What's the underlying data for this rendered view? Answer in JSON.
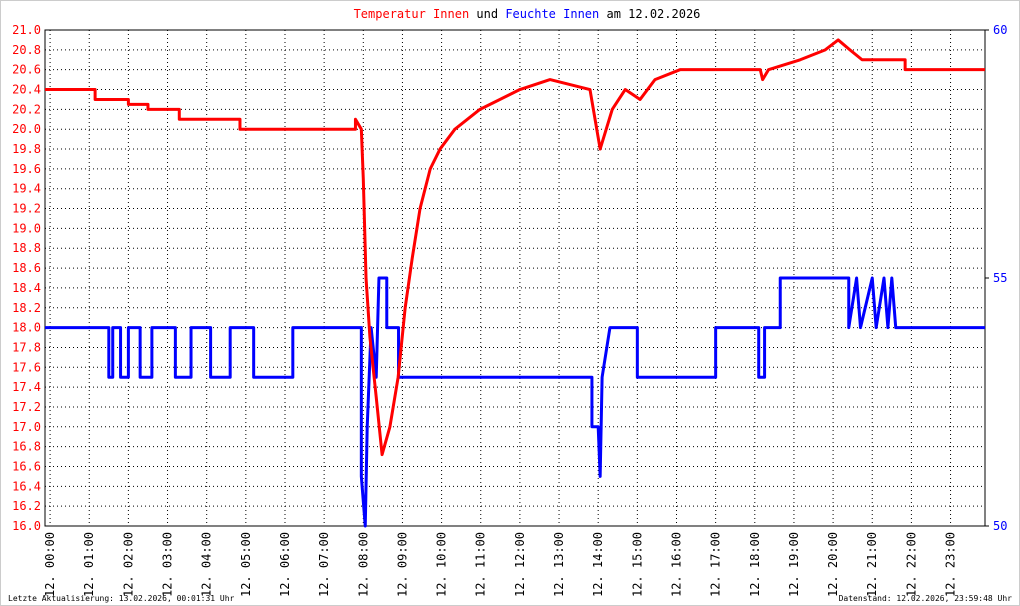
{
  "chart_data": {
    "type": "line",
    "title_words": [
      "und",
      "am 12.02.2026"
    ],
    "footer_left": "Letzte Aktualisierung: 13.02.2026, 00:01:31 Uhr",
    "footer_right": "Datenstand: 12.02.2026, 23:59:48 Uhr",
    "grid": true,
    "xlim": [
      -0.13,
      23.88
    ],
    "xticks": [
      {
        "value": 0,
        "label": "12. 00:00"
      },
      {
        "value": 1,
        "label": "12. 01:00"
      },
      {
        "value": 2,
        "label": "12. 02:00"
      },
      {
        "value": 3,
        "label": "12. 03:00"
      },
      {
        "value": 4,
        "label": "12. 04:00"
      },
      {
        "value": 5,
        "label": "12. 05:00"
      },
      {
        "value": 6,
        "label": "12. 06:00"
      },
      {
        "value": 7,
        "label": "12. 07:00"
      },
      {
        "value": 8,
        "label": "12. 08:00"
      },
      {
        "value": 9,
        "label": "12. 09:00"
      },
      {
        "value": 10,
        "label": "12. 10:00"
      },
      {
        "value": 11,
        "label": "12. 11:00"
      },
      {
        "value": 12,
        "label": "12. 12:00"
      },
      {
        "value": 13,
        "label": "12. 13:00"
      },
      {
        "value": 14,
        "label": "12. 14:00"
      },
      {
        "value": 15,
        "label": "12. 15:00"
      },
      {
        "value": 16,
        "label": "12. 16:00"
      },
      {
        "value": 17,
        "label": "12. 17:00"
      },
      {
        "value": 18,
        "label": "12. 18:00"
      },
      {
        "value": 19,
        "label": "12. 19:00"
      },
      {
        "value": 20,
        "label": "12. 20:00"
      },
      {
        "value": 21,
        "label": "12. 21:00"
      },
      {
        "value": 22,
        "label": "12. 22:00"
      },
      {
        "value": 23,
        "label": "12. 23:00"
      }
    ],
    "ylim": [
      16,
      21
    ],
    "yticks": [
      {
        "value": 16,
        "label": "16.0"
      },
      16.2,
      16.4,
      16.6,
      16.8,
      {
        "value": 17,
        "label": "17.0"
      },
      17.2,
      17.4,
      17.6,
      17.8,
      {
        "value": 18,
        "label": "18.0"
      },
      18.2,
      18.4,
      18.6,
      18.8,
      {
        "value": 19,
        "label": "19.0"
      },
      19.2,
      19.4,
      19.6,
      19.8,
      {
        "value": 20,
        "label": "20.0"
      },
      20.2,
      20.4,
      20.6,
      20.8,
      {
        "value": 21,
        "label": "21.0"
      }
    ],
    "y2lim": [
      50,
      60
    ],
    "y2ticks": [
      50,
      55,
      60
    ],
    "series": [
      {
        "name": "Temperatur Innen",
        "color": "#ff0000",
        "x": [
          -0.13,
          1.15,
          1.15,
          2.0,
          2.0,
          2.5,
          2.5,
          3.3,
          3.3,
          4.85,
          4.85,
          7.8,
          7.8,
          7.95,
          8.0,
          8.07,
          8.17,
          8.33,
          8.48,
          8.68,
          8.89,
          9.07,
          9.25,
          9.45,
          9.71,
          9.96,
          10.34,
          10.98,
          12.0,
          12.77,
          13.79,
          14.05,
          14.36,
          14.69,
          15.07,
          15.45,
          16.09,
          18.14,
          18.2,
          18.35,
          19.16,
          19.8,
          20.13,
          20.43,
          20.74,
          21.84,
          21.84,
          23.88
        ],
        "values": [
          20.4,
          20.4,
          20.3,
          20.3,
          20.25,
          20.25,
          20.2,
          20.2,
          20.1,
          20.1,
          20.0,
          20.0,
          20.1,
          20.0,
          19.5,
          18.5,
          17.9,
          17.3,
          16.72,
          17.0,
          17.5,
          18.2,
          18.7,
          19.2,
          19.6,
          19.8,
          20.0,
          20.2,
          20.4,
          20.5,
          20.4,
          19.8,
          20.2,
          20.4,
          20.3,
          20.5,
          20.6,
          20.6,
          20.5,
          20.6,
          20.7,
          20.8,
          20.9,
          20.8,
          20.7,
          20.7,
          20.6,
          20.6
        ]
      },
      {
        "name": "Feuchte Innen",
        "color": "#0000ff",
        "axis": "y2",
        "x": [
          -0.13,
          1.5,
          1.5,
          1.6,
          1.6,
          1.8,
          1.8,
          2.0,
          2.0,
          2.3,
          2.3,
          2.6,
          2.6,
          3.2,
          3.2,
          3.6,
          3.6,
          4.1,
          4.1,
          4.6,
          4.6,
          5.2,
          5.2,
          6.2,
          6.2,
          7.95,
          7.95,
          8.05,
          8.1,
          8.2,
          8.33,
          8.4,
          8.6,
          8.6,
          8.9,
          8.9,
          13.84,
          13.84,
          14.0,
          14.05,
          14.1,
          14.3,
          15.0,
          15.0,
          17.0,
          17.0,
          18.1,
          18.1,
          18.25,
          18.25,
          18.65,
          18.65,
          20.4,
          20.4,
          20.6,
          20.7,
          21.0,
          21.1,
          21.3,
          21.4,
          21.5,
          21.6,
          23.88
        ],
        "values": [
          54,
          54,
          53,
          53,
          54,
          54,
          53,
          53,
          54,
          54,
          53,
          53,
          54,
          54,
          53,
          53,
          54,
          54,
          53,
          53,
          54,
          54,
          53,
          53,
          54,
          54,
          51,
          50,
          52,
          54,
          53,
          55,
          55,
          54,
          54,
          53,
          53,
          52,
          52,
          51,
          53,
          54,
          54,
          53,
          53,
          54,
          54,
          53,
          53,
          54,
          54,
          55,
          55,
          54,
          55,
          54,
          55,
          54,
          55,
          54,
          55,
          54,
          54
        ]
      }
    ]
  }
}
